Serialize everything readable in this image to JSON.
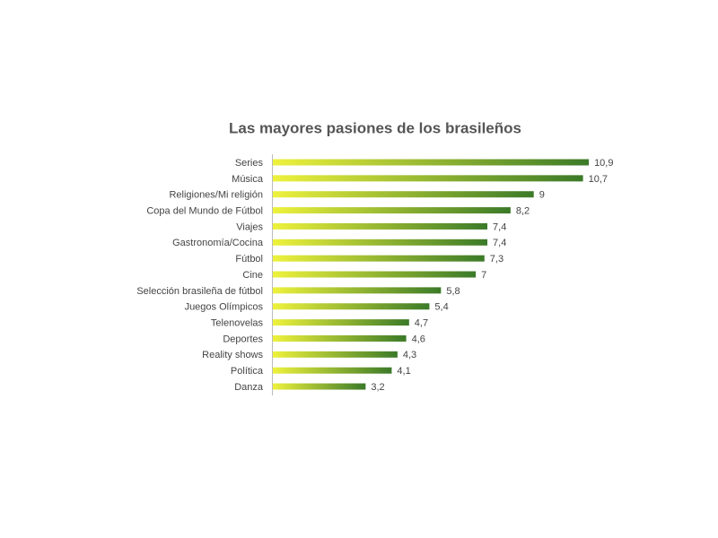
{
  "chart_data": {
    "type": "bar",
    "orientation": "horizontal",
    "title": "Las mayores pasiones de los brasileños",
    "categories": [
      "Series",
      "Música",
      "Religiones/Mi religión",
      "Copa del Mundo de Fútbol",
      "Viajes",
      "Gastronomía/Cocina",
      "Fútbol",
      "Cine",
      "Selección brasileña de fútbol",
      "Juegos Olímpicos",
      "Telenovelas",
      "Deportes",
      "Reality shows",
      "Política",
      "Danza"
    ],
    "values": [
      10.9,
      10.7,
      9,
      8.2,
      7.4,
      7.4,
      7.3,
      7,
      5.8,
      5.4,
      4.7,
      4.6,
      4.3,
      4.1,
      3.2
    ],
    "value_labels": [
      "10,9",
      "10,7",
      "9",
      "8,2",
      "7,4",
      "7,4",
      "7,3",
      "7",
      "5,8",
      "5,4",
      "4,7",
      "4,6",
      "4,3",
      "4,1",
      "3,2"
    ],
    "gradient": [
      "#eef23c",
      "#3b7a28"
    ]
  }
}
